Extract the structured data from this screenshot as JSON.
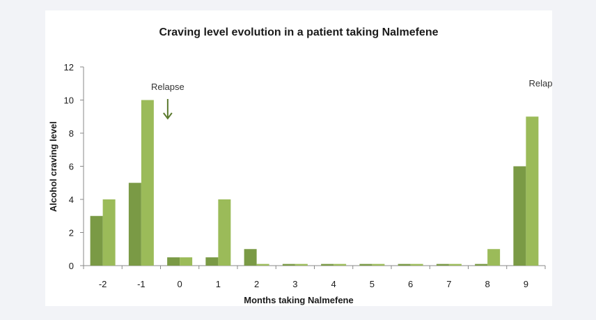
{
  "colors": {
    "background": "#f2f3f7",
    "panel": "#ffffff",
    "series_dark": "#7a9a45",
    "series_light": "#9bbb59",
    "axis": "#888888",
    "arrow": "#5b7a2e"
  },
  "chart_data": {
    "type": "bar",
    "title": "Craving level evolution in a patient taking Nalmefene",
    "xlabel": "Months taking Nalmefene",
    "ylabel": "Alcohol craving level",
    "categories": [
      "-2",
      "-1",
      "0",
      "1",
      "2",
      "3",
      "4",
      "5",
      "6",
      "7",
      "8",
      "9"
    ],
    "series": [
      {
        "color": "#7a9a45",
        "values": [
          3,
          5,
          0.5,
          0.5,
          1,
          0.1,
          0.1,
          0.1,
          0.1,
          0.1,
          0.1,
          6
        ]
      },
      {
        "color": "#9bbb59",
        "values": [
          4,
          10,
          0.5,
          4,
          0.1,
          0.1,
          0.1,
          0.1,
          0.1,
          0.1,
          1,
          9
        ]
      }
    ],
    "ylim": [
      0,
      12
    ],
    "yticks": [
      0,
      2,
      4,
      6,
      8,
      10,
      12
    ],
    "grid": false,
    "legend": "none",
    "annotations": [
      {
        "text": "Relapse",
        "category": "-1",
        "kind": "arrow-down"
      },
      {
        "text": "Relapse",
        "category": "9",
        "kind": "arrow-down"
      }
    ]
  }
}
